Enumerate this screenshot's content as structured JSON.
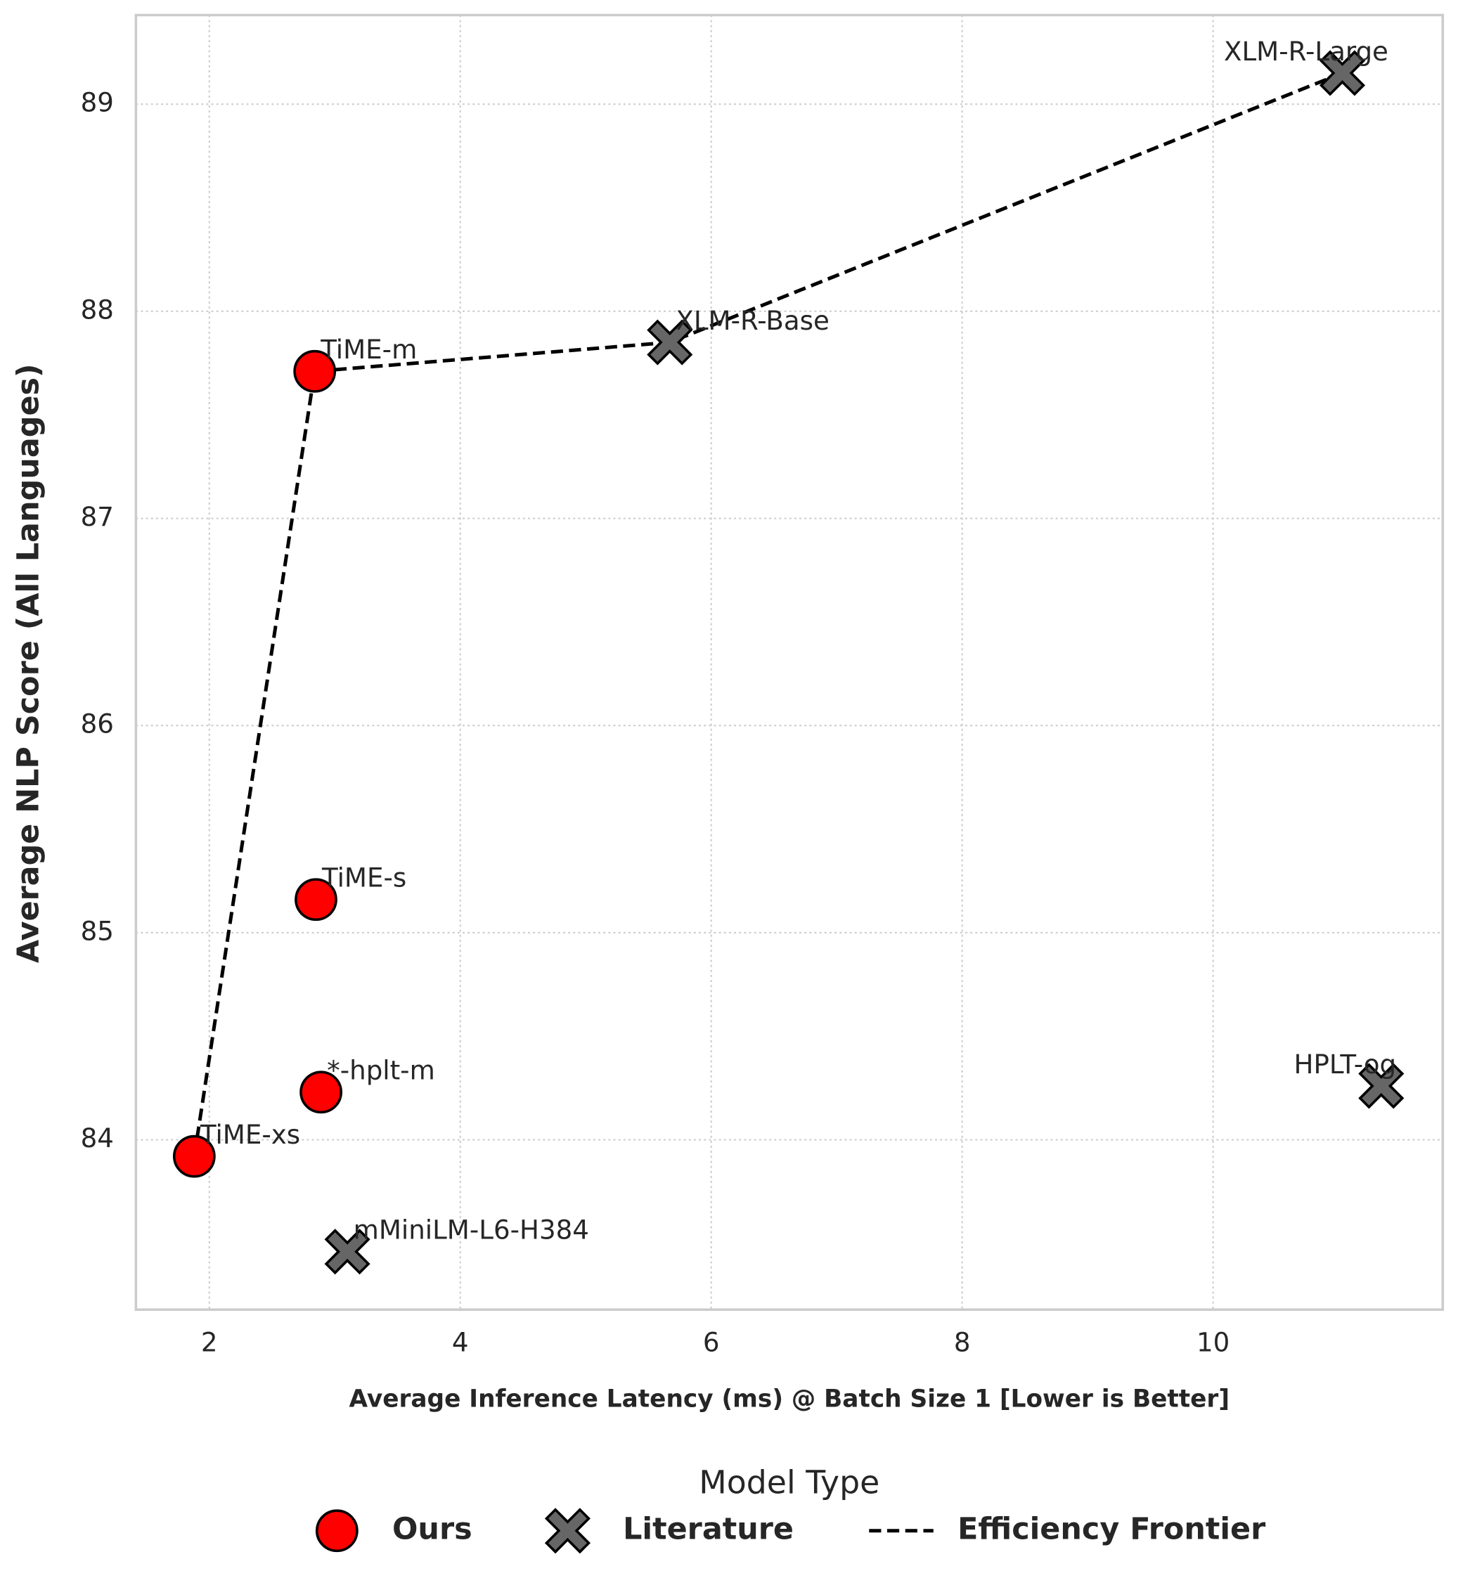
{
  "chart_data": {
    "type": "scatter",
    "x_label": "Average Inference Latency (ms) @ Batch Size 1 [Lower is Better]",
    "y_label": "Average NLP Score (All Languages)",
    "legend_title": "Model Type",
    "xlim": [
      1.415,
      11.83
    ],
    "ylim": [
      83.18,
      89.43
    ],
    "xticks": [
      2,
      4,
      6,
      8,
      10
    ],
    "yticks": [
      84,
      85,
      86,
      87,
      88,
      89
    ],
    "grid": true,
    "legend": "bottom",
    "series": [
      {
        "name": "Ours",
        "type": "scatter",
        "marker": "circle",
        "color": "#ff0000",
        "x": [
          1.88,
          2.84,
          2.85,
          2.89
        ],
        "values": [
          83.92,
          87.71,
          85.16,
          84.23
        ],
        "labels": [
          "TiME-xs",
          "TiME-m",
          "TiME-s",
          "*-hplt-m"
        ]
      },
      {
        "name": "Literature",
        "type": "scatter",
        "marker": "x",
        "color": "#666666",
        "x": [
          3.1,
          5.67,
          11.03,
          11.34
        ],
        "values": [
          83.46,
          87.85,
          89.15,
          84.26
        ],
        "labels": [
          "mMiniLM-L6-H384",
          "XLM-R-Base",
          "XLM-R-Large",
          "HPLT-og"
        ]
      },
      {
        "name": "Efficiency Frontier",
        "type": "line",
        "color": "#000000",
        "x": [
          1.88,
          2.84,
          5.67,
          11.03
        ],
        "values": [
          83.92,
          87.71,
          87.85,
          89.15
        ]
      }
    ]
  }
}
